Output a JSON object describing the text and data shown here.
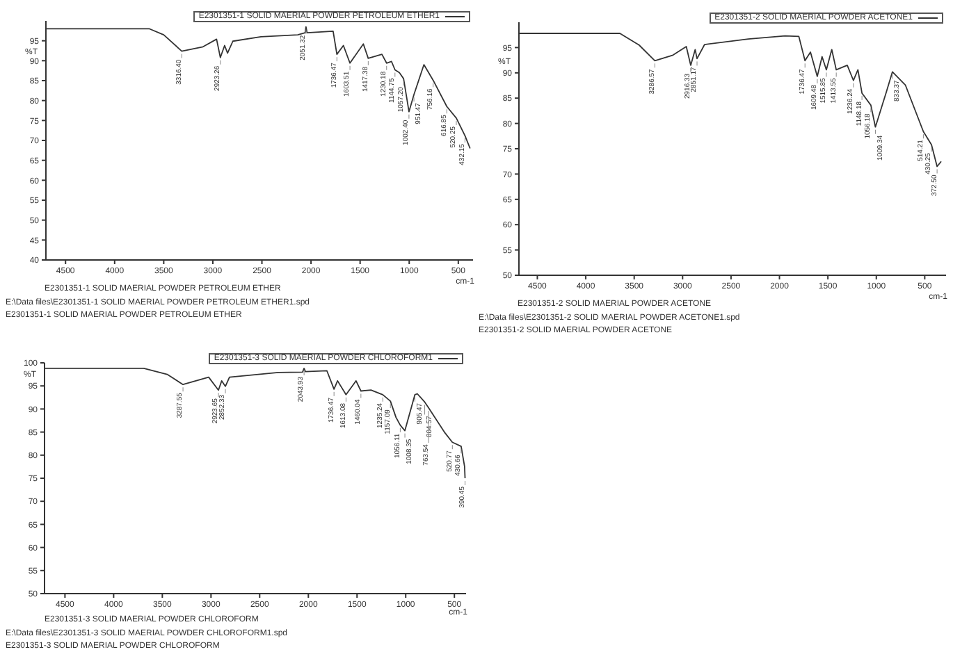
{
  "chart_data": [
    {
      "type": "line",
      "ylabel": "%T",
      "xlabel": "cm-1",
      "xlim": [
        4700,
        350
      ],
      "xticks": [
        4500,
        4000,
        3500,
        3000,
        2500,
        2000,
        1500,
        1000,
        500
      ],
      "ylim": [
        40,
        100
      ],
      "yticks": [
        40,
        45,
        50,
        55,
        60,
        65,
        70,
        75,
        80,
        85,
        90,
        95
      ],
      "legend": "top right",
      "grid": false,
      "series": [
        {
          "name": "E2301351-1 SOLID MAERIAL POWDER PETROLEUM ETHER1",
          "color": "#333333",
          "x": [
            4700,
            3645,
            3500,
            3316.4,
            3100,
            2962,
            2923.26,
            2880,
            2850,
            2796,
            2510,
            2135,
            2060,
            2051.32,
            2040,
            1775,
            1736.47,
            1670,
            1603.51,
            1467,
            1417.38,
            1278,
            1230.18,
            1180,
            1144.75,
            1100,
            1057.2,
            1002.4,
            951.47,
            850,
            756.16,
            616.85,
            520.25,
            432.15,
            380
          ],
          "values": [
            98,
            98,
            96.5,
            92.4,
            93.5,
            95.4,
            90.8,
            93.8,
            91.9,
            94.9,
            96,
            96.5,
            97,
            98.5,
            97,
            97.4,
            91.6,
            93.8,
            89.4,
            94.2,
            90.6,
            91.6,
            89.4,
            89.8,
            87.7,
            87,
            85.5,
            77.2,
            81.5,
            89,
            85.1,
            78.5,
            75.6,
            71.2,
            68
          ]
        }
      ],
      "annotations": [
        "E2301351-1 SOLID MAERIAL POWDER PETROLEUM ETHER",
        "E:\\Data files\\E2301351-1 SOLID MAERIAL POWDER PETROLEUM ETHER1.spd",
        "E2301351-1 SOLID MAERIAL POWDER PETROLEUM ETHER",
        {
          "text": "3316.40",
          "x": 3316.4,
          "y": 92.4
        },
        {
          "text": "2923.26",
          "x": 2923.26,
          "y": 90.8
        },
        {
          "text": "2051.32",
          "x": 2051.32,
          "y": 98.5
        },
        {
          "text": "1736.47",
          "x": 1736.47,
          "y": 91.6
        },
        {
          "text": "1603.51",
          "x": 1603.51,
          "y": 89.4
        },
        {
          "text": "1417.38",
          "x": 1417.38,
          "y": 90.6
        },
        {
          "text": "1230.18",
          "x": 1230.18,
          "y": 89.4
        },
        {
          "text": "1144.75",
          "x": 1144.75,
          "y": 87.7
        },
        {
          "text": "1057.20",
          "x": 1057.2,
          "y": 85.5
        },
        {
          "text": "1002.40",
          "x": 1002.4,
          "y": 77.2
        },
        {
          "text": "951.47",
          "x": 951.47,
          "y": 81.5
        },
        {
          "text": "756.16",
          "x": 756.16,
          "y": 85.1
        },
        {
          "text": "616.85",
          "x": 616.85,
          "y": 78.5
        },
        {
          "text": "520.25",
          "x": 520.25,
          "y": 75.6
        },
        {
          "text": "432.15",
          "x": 432.15,
          "y": 71.2
        }
      ]
    },
    {
      "type": "line",
      "ylabel": "%T",
      "xlabel": "cm-1",
      "xlim": [
        4690,
        280
      ],
      "xticks": [
        4500,
        4000,
        3500,
        3000,
        2500,
        2000,
        1500,
        1000,
        500
      ],
      "ylim": [
        50,
        100
      ],
      "yticks": [
        50,
        55,
        60,
        65,
        70,
        75,
        80,
        85,
        90,
        95
      ],
      "legend": "top right",
      "grid": false,
      "series": [
        {
          "name": "E2301351-2 SOLID MAERIAL POWDER ACETONE1",
          "color": "#333333",
          "x": [
            4690,
            3648,
            3450,
            3286.57,
            3100,
            2962,
            2916.33,
            2870,
            2851.17,
            2773,
            2322,
            1943,
            1800,
            1736.47,
            1680,
            1609.48,
            1560,
            1515.85,
            1460,
            1413.55,
            1300,
            1236.24,
            1190,
            1148.18,
            1056.18,
            1009.34,
            900,
            833.37,
            700,
            514.21,
            430.25,
            372.5,
            330
          ],
          "values": [
            97.8,
            97.8,
            95.5,
            92.4,
            93.5,
            95.2,
            91.5,
            94.6,
            92.8,
            95.6,
            96.7,
            97.3,
            97.2,
            92.4,
            94.1,
            89.3,
            93.2,
            90.6,
            94.6,
            90.6,
            91.5,
            88.5,
            90.6,
            86,
            83.6,
            79.3,
            86,
            90.2,
            87.6,
            78.4,
            75.8,
            71.5,
            72.5
          ]
        }
      ],
      "annotations": [
        "E2301351-2 SOLID MAERIAL POWDER ACETONE",
        "E:\\Data files\\E2301351-2 SOLID MAERIAL POWDER ACETONE1.spd",
        "E2301351-2 SOLID MAERIAL POWDER ACETONE",
        {
          "text": "3286.57",
          "x": 3286.57,
          "y": 92.4
        },
        {
          "text": "2916.33",
          "x": 2916.33,
          "y": 91.5
        },
        {
          "text": "2851.17",
          "x": 2851.17,
          "y": 92.8
        },
        {
          "text": "1736.47",
          "x": 1736.47,
          "y": 92.4
        },
        {
          "text": "1609.48",
          "x": 1609.48,
          "y": 89.3
        },
        {
          "text": "1515.85",
          "x": 1515.85,
          "y": 90.6
        },
        {
          "text": "1413.55",
          "x": 1413.55,
          "y": 90.6
        },
        {
          "text": "1236.24",
          "x": 1236.24,
          "y": 88.5
        },
        {
          "text": "1148.18",
          "x": 1148.18,
          "y": 86
        },
        {
          "text": "1056.18",
          "x": 1056.18,
          "y": 83.6
        },
        {
          "text": "1009.34",
          "x": 1009.34,
          "y": 79.3
        },
        {
          "text": "833.37",
          "x": 833.37,
          "y": 90.2
        },
        {
          "text": "514.21",
          "x": 514.21,
          "y": 78.4
        },
        {
          "text": "430.25",
          "x": 430.25,
          "y": 75.8
        },
        {
          "text": "372.50",
          "x": 372.5,
          "y": 71.5
        }
      ]
    },
    {
      "type": "line",
      "ylabel": "%T",
      "xlabel": "cm-1",
      "xlim": [
        4710,
        380
      ],
      "xticks": [
        4500,
        4000,
        3500,
        3000,
        2500,
        2000,
        1500,
        1000,
        500
      ],
      "ylim": [
        50,
        100
      ],
      "yticks": [
        50,
        55,
        60,
        65,
        70,
        75,
        80,
        85,
        90,
        95,
        100
      ],
      "legend": "top right",
      "grid": false,
      "series": [
        {
          "name": "E2301351-3 SOLID MAERIAL POWDER CHLOROFORM1",
          "color": "#333333",
          "x": [
            4710,
            3691,
            3450,
            3287.55,
            3024,
            2923.65,
            2890,
            2852.33,
            2810,
            2310,
            2060,
            2043.93,
            2030,
            1810,
            1736.47,
            1700,
            1613.08,
            1510,
            1460.04,
            1357,
            1235.24,
            1157.09,
            1100,
            1056.11,
            1008.35,
            905.47,
            881,
            804.57,
            763.54,
            596,
            520.77,
            430.66,
            395,
            390.45
          ],
          "values": [
            98.8,
            98.8,
            97.5,
            95.3,
            96.9,
            94.1,
            96.1,
            94.9,
            96.9,
            97.9,
            98,
            98.8,
            98.1,
            98.3,
            94.3,
            96.1,
            93.1,
            96.1,
            93.9,
            94.1,
            93.1,
            91.7,
            88.2,
            86.5,
            85.3,
            93.1,
            93.3,
            91.5,
            90.2,
            84.8,
            82.8,
            81.9,
            77.5,
            75
          ]
        }
      ],
      "annotations": [
        "E2301351-3 SOLID MAERIAL POWDER CHLOROFORM",
        "E:\\Data files\\E2301351-3 SOLID MAERIAL POWDER CHLOROFORM1.spd",
        "E2301351-3 SOLID MAERIAL POWDER CHLOROFORM",
        {
          "text": "3287.55",
          "x": 3287.55,
          "y": 95.3
        },
        {
          "text": "2923.65",
          "x": 2923.65,
          "y": 94.1
        },
        {
          "text": "2852.33",
          "x": 2852.33,
          "y": 94.9
        },
        {
          "text": "2043.93",
          "x": 2043.93,
          "y": 98.8
        },
        {
          "text": "1736.47",
          "x": 1736.47,
          "y": 94.3
        },
        {
          "text": "1613.08",
          "x": 1613.08,
          "y": 93.1
        },
        {
          "text": "1460.04",
          "x": 1460.04,
          "y": 93.9
        },
        {
          "text": "1235.24",
          "x": 1235.24,
          "y": 93.1
        },
        {
          "text": "1157.09",
          "x": 1157.09,
          "y": 91.7
        },
        {
          "text": "1056.11",
          "x": 1056.11,
          "y": 86.5
        },
        {
          "text": "1008.35",
          "x": 1008.35,
          "y": 85.3
        },
        {
          "text": "905.47",
          "x": 905.47,
          "y": 93.1
        },
        {
          "text": "804.57",
          "x": 804.57,
          "y": 91.5
        },
        {
          "text": "763.54",
          "x": 763.54,
          "y": 90.2
        },
        {
          "text": "520.77",
          "x": 520.77,
          "y": 82.8
        },
        {
          "text": "430.66",
          "x": 430.66,
          "y": 81.9
        },
        {
          "text": "390.45",
          "x": 390.45,
          "y": 75
        }
      ]
    }
  ]
}
